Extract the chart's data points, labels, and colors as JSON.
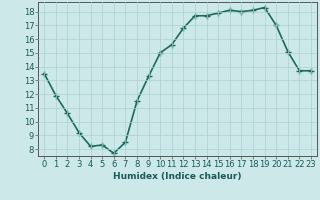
{
  "x": [
    0,
    1,
    2,
    3,
    4,
    5,
    6,
    7,
    8,
    9,
    10,
    11,
    12,
    13,
    14,
    15,
    16,
    17,
    18,
    19,
    20,
    21,
    22,
    23
  ],
  "y": [
    13.5,
    11.9,
    10.6,
    9.2,
    8.2,
    8.3,
    7.7,
    8.5,
    11.5,
    13.3,
    15.0,
    15.6,
    16.8,
    17.7,
    17.7,
    17.9,
    18.1,
    18.0,
    18.1,
    18.3,
    17.0,
    15.1,
    13.7,
    13.7
  ],
  "xlabel": "Humidex (Indice chaleur)",
  "xlim": [
    -0.5,
    23.5
  ],
  "ylim": [
    7.5,
    18.7
  ],
  "yticks": [
    8,
    9,
    10,
    11,
    12,
    13,
    14,
    15,
    16,
    17,
    18
  ],
  "xticks": [
    0,
    1,
    2,
    3,
    4,
    5,
    6,
    7,
    8,
    9,
    10,
    11,
    12,
    13,
    14,
    15,
    16,
    17,
    18,
    19,
    20,
    21,
    22,
    23
  ],
  "line_color": "#1a6b5a",
  "marker_color": "#1a6b5a",
  "bg_color": "#cce8e8",
  "grid_color": "#aad0d0",
  "axis_color": "#555555",
  "label_fontsize": 6.5,
  "tick_fontsize": 6.0,
  "line_width": 1.2,
  "marker_size": 4
}
